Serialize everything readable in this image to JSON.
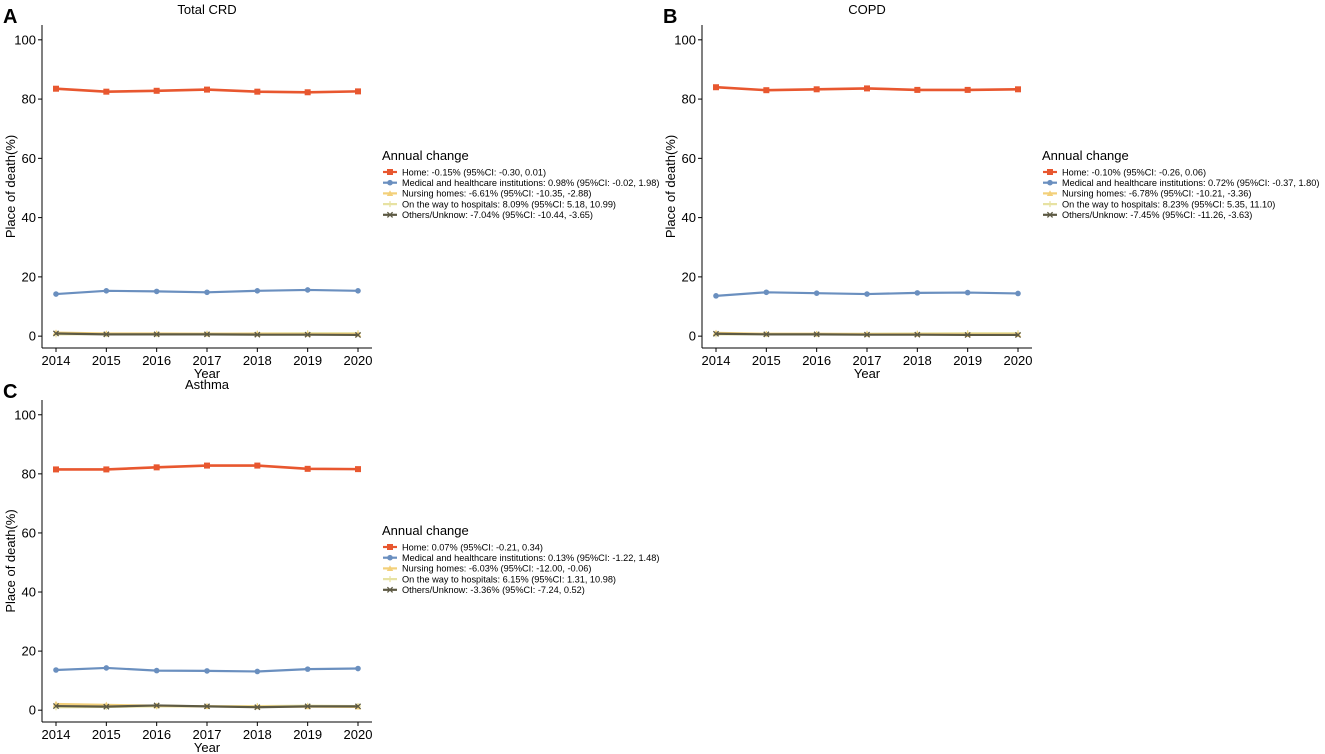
{
  "figure": {
    "background": "#ffffff"
  },
  "colors": {
    "home": "#e8572f",
    "medical": "#6a8fbf",
    "nursing": "#f3d07a",
    "way": "#e7e2a2",
    "others": "#5d5a44",
    "axis": "#000000"
  },
  "chart_data": [
    {
      "panel_label": "A",
      "type": "line",
      "title": "Total CRD",
      "xlabel": "Year",
      "ylabel": "Place of death(%)",
      "x": [
        "2014",
        "2015",
        "2016",
        "2017",
        "2018",
        "2019",
        "2020"
      ],
      "yticks": [
        "0",
        "20",
        "40",
        "60",
        "80",
        "100"
      ],
      "ylim": [
        -4,
        105
      ],
      "legend_title": "Annual change",
      "legend_position": "right",
      "series": [
        {
          "key": "home",
          "name": "Home: -0.15% (95%CI: -0.30, 0.01)",
          "marker": "square",
          "values": [
            83.5,
            82.5,
            82.8,
            83.2,
            82.5,
            82.3,
            82.6
          ]
        },
        {
          "key": "medical",
          "name": "Medical and healthcare institutions: 0.98% (95%CI: -0.02, 1.98)",
          "marker": "circle",
          "values": [
            14.2,
            15.3,
            15.1,
            14.8,
            15.3,
            15.6,
            15.3
          ]
        },
        {
          "key": "nursing",
          "name": "Nursing homes: -6.61% (95%CI: -10.35, -2.88)",
          "marker": "triangle",
          "values": [
            1.2,
            0.9,
            0.9,
            0.8,
            0.8,
            0.7,
            0.7
          ]
        },
        {
          "key": "way",
          "name": "On the way to hospitals: 8.09% (95%CI: 5.18, 10.99)",
          "marker": "plus",
          "values": [
            0.6,
            0.7,
            0.7,
            0.8,
            0.9,
            1.0,
            1.0
          ]
        },
        {
          "key": "others",
          "name": "Others/Unknow: -7.04% (95%CI: -10.44, -3.65)",
          "marker": "cross",
          "values": [
            0.9,
            0.6,
            0.6,
            0.6,
            0.5,
            0.5,
            0.4
          ]
        }
      ]
    },
    {
      "panel_label": "B",
      "type": "line",
      "title": "COPD",
      "xlabel": "Year",
      "ylabel": "Place of death(%)",
      "x": [
        "2014",
        "2015",
        "2016",
        "2017",
        "2018",
        "2019",
        "2020"
      ],
      "yticks": [
        "0",
        "20",
        "40",
        "60",
        "80",
        "100"
      ],
      "ylim": [
        -4,
        105
      ],
      "legend_title": "Annual change",
      "legend_position": "right",
      "series": [
        {
          "key": "home",
          "name": "Home: -0.10% (95%CI: -0.26, 0.06)",
          "marker": "square",
          "values": [
            84.0,
            83.0,
            83.3,
            83.6,
            83.1,
            83.1,
            83.3
          ]
        },
        {
          "key": "medical",
          "name": "Medical and healthcare institutions: 0.72% (95%CI: -0.37, 1.80)",
          "marker": "circle",
          "values": [
            13.6,
            14.8,
            14.5,
            14.2,
            14.6,
            14.7,
            14.4
          ]
        },
        {
          "key": "nursing",
          "name": "Nursing homes: -6.78% (95%CI: -10.21, -3.36)",
          "marker": "triangle",
          "values": [
            1.1,
            0.8,
            0.8,
            0.7,
            0.7,
            0.6,
            0.6
          ]
        },
        {
          "key": "way",
          "name": "On the way to hospitals: 8.23% (95%CI: 5.35, 11.10)",
          "marker": "plus",
          "values": [
            0.6,
            0.7,
            0.7,
            0.8,
            0.9,
            1.0,
            1.0
          ]
        },
        {
          "key": "others",
          "name": "Others/Unknow: -7.45% (95%CI: -11.26, -3.63)",
          "marker": "cross",
          "values": [
            0.8,
            0.6,
            0.6,
            0.5,
            0.5,
            0.4,
            0.4
          ]
        }
      ]
    },
    {
      "panel_label": "C",
      "type": "line",
      "title": "Asthma",
      "xlabel": "Year",
      "ylabel": "Place of death(%)",
      "x": [
        "2014",
        "2015",
        "2016",
        "2017",
        "2018",
        "2019",
        "2020"
      ],
      "yticks": [
        "0",
        "20",
        "40",
        "60",
        "80",
        "100"
      ],
      "ylim": [
        -4,
        105
      ],
      "legend_title": "Annual change",
      "legend_position": "right",
      "series": [
        {
          "key": "home",
          "name": "Home: 0.07% (95%CI: -0.21, 0.34)",
          "marker": "square",
          "values": [
            81.5,
            81.5,
            82.2,
            82.8,
            82.8,
            81.7,
            81.6
          ]
        },
        {
          "key": "medical",
          "name": "Medical and healthcare institutions: 0.13% (95%CI: -1.22, 1.48)",
          "marker": "circle",
          "values": [
            13.6,
            14.3,
            13.4,
            13.3,
            13.1,
            13.9,
            14.1
          ]
        },
        {
          "key": "nursing",
          "name": "Nursing homes: -6.03% (95%CI: -12.00, -0.06)",
          "marker": "triangle",
          "values": [
            2.1,
            1.8,
            1.5,
            1.3,
            1.2,
            1.2,
            1.1
          ]
        },
        {
          "key": "way",
          "name": "On the way to hospitals: 6.15% (95%CI: 1.31, 10.98)",
          "marker": "plus",
          "values": [
            1.0,
            1.1,
            1.3,
            1.3,
            1.4,
            1.5,
            1.4
          ]
        },
        {
          "key": "others",
          "name": "Others/Unknow: -3.36% (95%CI: -7.24, 0.52)",
          "marker": "cross",
          "values": [
            1.4,
            1.2,
            1.6,
            1.3,
            1.0,
            1.3,
            1.3
          ]
        }
      ]
    }
  ]
}
